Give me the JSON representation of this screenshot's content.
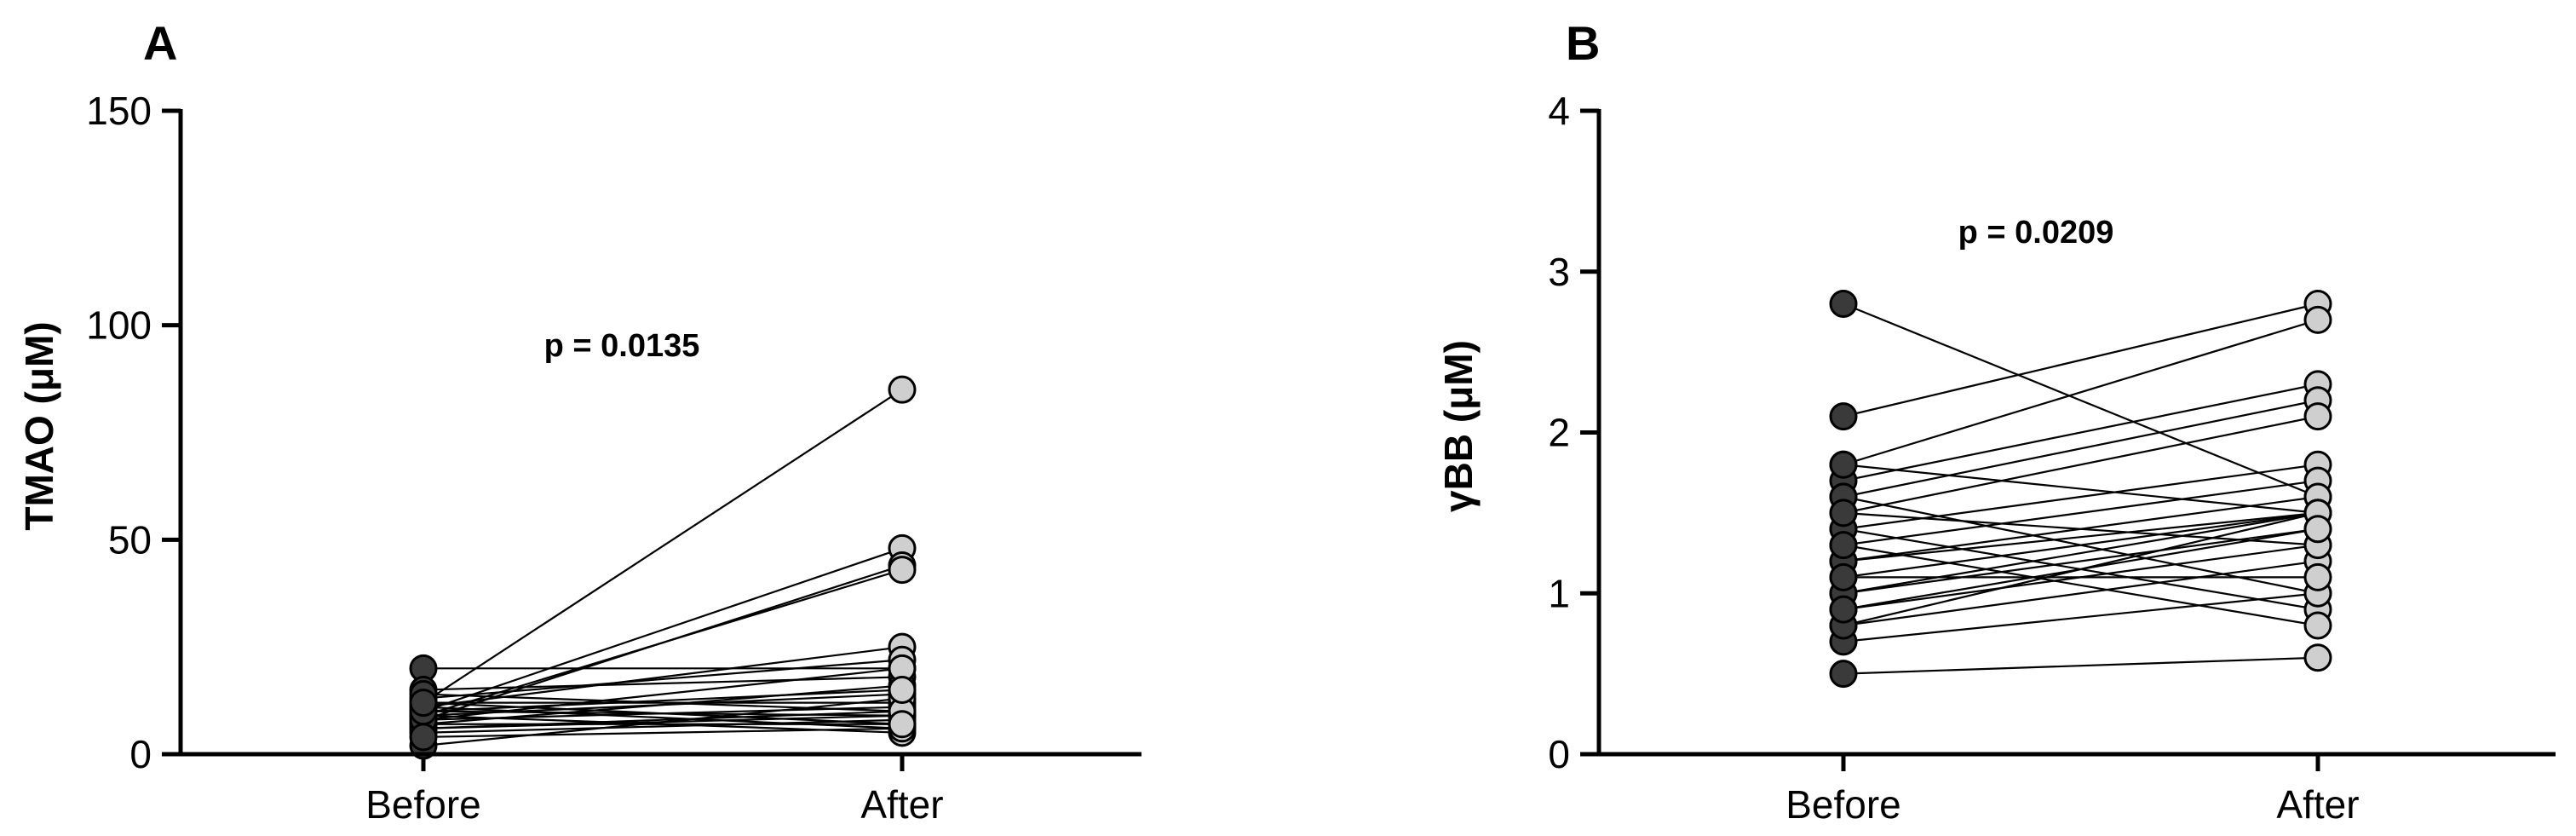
{
  "chart_data": [
    {
      "type": "paired-scatter",
      "panel_label": "A",
      "ylabel": "TMAO (μM)",
      "categories": [
        "Before",
        "After"
      ],
      "yticks": [
        0,
        50,
        100,
        150
      ],
      "ylim": [
        0,
        150
      ],
      "annotation": "p = 0.0135",
      "colors": {
        "before": "#3a3a3a",
        "after": "#cfcfcf"
      },
      "pairs": [
        [
          20,
          20
        ],
        [
          12,
          85
        ],
        [
          10,
          48
        ],
        [
          8,
          44
        ],
        [
          9,
          43
        ],
        [
          11,
          25
        ],
        [
          13,
          22
        ],
        [
          15,
          18
        ],
        [
          7,
          16
        ],
        [
          9,
          14
        ],
        [
          12,
          12
        ],
        [
          6,
          10
        ],
        [
          8,
          11
        ],
        [
          10,
          9
        ],
        [
          5,
          8
        ],
        [
          7,
          7
        ],
        [
          11,
          6
        ],
        [
          9,
          5
        ],
        [
          6,
          9
        ],
        [
          2,
          13
        ],
        [
          8,
          20
        ],
        [
          14,
          10
        ],
        [
          10,
          15
        ],
        [
          4,
          6
        ],
        [
          12,
          7
        ]
      ]
    },
    {
      "type": "paired-scatter",
      "panel_label": "B",
      "ylabel": "γBB (μM)",
      "categories": [
        "Before",
        "After"
      ],
      "yticks": [
        0,
        1,
        2,
        3,
        4
      ],
      "ylim": [
        0,
        4
      ],
      "annotation": "p = 0.0209",
      "colors": {
        "before": "#3a3a3a",
        "after": "#cfcfcf"
      },
      "pairs": [
        [
          2.8,
          1.6
        ],
        [
          2.1,
          2.8
        ],
        [
          1.8,
          2.7
        ],
        [
          1.7,
          2.3
        ],
        [
          1.6,
          2.2
        ],
        [
          1.5,
          2.1
        ],
        [
          1.4,
          1.8
        ],
        [
          1.3,
          1.7
        ],
        [
          1.2,
          1.6
        ],
        [
          1.1,
          1.5
        ],
        [
          1.0,
          1.4
        ],
        [
          0.9,
          1.3
        ],
        [
          0.8,
          1.2
        ],
        [
          0.7,
          1.0
        ],
        [
          0.5,
          0.6
        ],
        [
          1.4,
          0.9
        ],
        [
          1.6,
          1.0
        ],
        [
          1.2,
          1.5
        ],
        [
          1.0,
          1.5
        ],
        [
          0.8,
          1.5
        ],
        [
          1.5,
          1.3
        ],
        [
          1.3,
          0.8
        ],
        [
          1.8,
          1.5
        ],
        [
          1.1,
          1.1
        ],
        [
          0.9,
          1.4
        ]
      ]
    }
  ]
}
